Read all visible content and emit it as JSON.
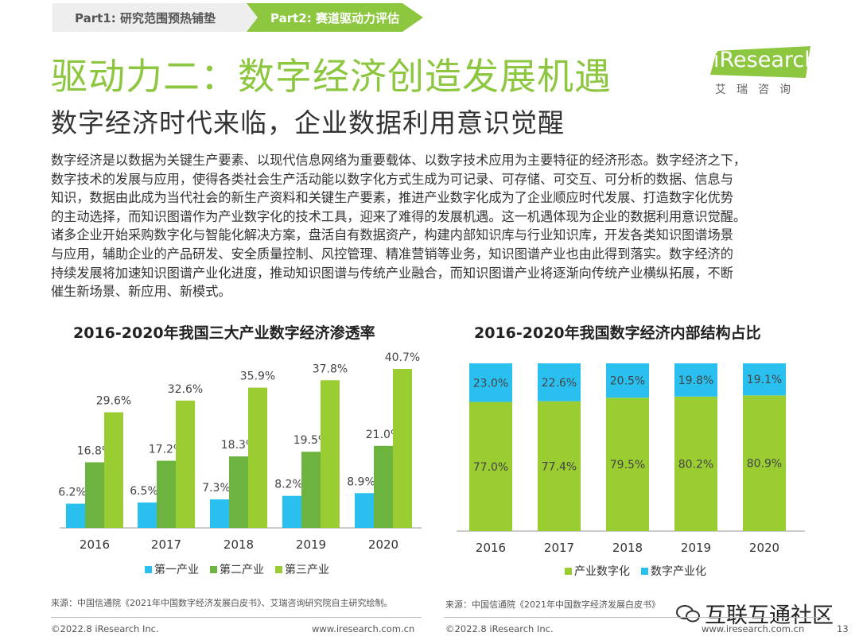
{
  "nav": {
    "tab1": "Part1: 研究范围预热铺垫",
    "tab2": "Part2: 赛道驱动力评估"
  },
  "title": "驱动力二：数字经济创造发展机遇",
  "subtitle": "数字经济时代来临，企业数据利用意识觉醒",
  "logo": {
    "text": "iResearch",
    "sub": "艾瑞咨询"
  },
  "body": [
    "数字经济是以数据为关键生产要素、以现代信息网络为重要载体、以数字技术应用为主要特征的经济形态。数字经济之下，",
    "数字技术的发展与应用，使得各类社会生产活动能以数字化方式生成为可记录、可存储、可交互、可分析的数据、信息与",
    "知识，数据由此成为当代社会的新生产资料和关键生产要素，推进产业数字化成为了企业顺应时代发展、打造数字化优势",
    "的主动选择，而知识图谱作为产业数字化的技术工具，迎来了难得的发展机遇。这一机遇体现为企业的数据利用意识觉醒。",
    "诸多企业开始采购数字化与智能化解决方案，盘活自有数据资产，构建内部知识库与行业知识库，开发各类知识图谱场景",
    "与应用，辅助企业的产品研发、安全质量控制、风控管理、精准营销等业务，知识图谱产业也由此得到落实。数字经济的",
    "持续发展将加速知识图谱产业化进度，推动知识图谱与传统产业融合，而知识图谱产业将逐渐向传统产业横纵拓展，不断",
    "催生新场景、新应用、新模式。"
  ],
  "chart_data": [
    {
      "type": "bar",
      "title": "2016-2020年我国三大产业数字经济渗透率",
      "categories": [
        "2016",
        "2017",
        "2018",
        "2019",
        "2020"
      ],
      "series": [
        {
          "name": "第一产业",
          "values": [
            6.2,
            6.5,
            7.3,
            8.2,
            8.9
          ],
          "labels": [
            "6.2%",
            "6.5%",
            "7.3%",
            "8.2%",
            "8.9%"
          ],
          "color": "#29c0f0"
        },
        {
          "name": "第二产业",
          "values": [
            16.8,
            17.2,
            18.3,
            19.5,
            21.0
          ],
          "labels": [
            "16.8%",
            "17.2%",
            "18.3%",
            "19.5%",
            "21.0%"
          ],
          "color": "#6cb33f"
        },
        {
          "name": "第三产业",
          "values": [
            29.6,
            32.6,
            35.9,
            37.8,
            40.7
          ],
          "labels": [
            "29.6%",
            "32.6%",
            "35.9%",
            "37.8%",
            "40.7%"
          ],
          "color": "#9acd32"
        }
      ],
      "ylim": [
        0,
        45
      ],
      "legend": "bottom",
      "source": "来源：中国信通院《2021年中国数字经济发展白皮书》、艾瑞咨询研究院自主研究绘制。"
    },
    {
      "type": "bar",
      "stacked": true,
      "title": "2016-2020年我国数字经济内部结构占比",
      "categories": [
        "2016",
        "2017",
        "2018",
        "2019",
        "2020"
      ],
      "series": [
        {
          "name": "产业数字化",
          "values": [
            77.0,
            77.4,
            79.5,
            80.2,
            80.9
          ],
          "labels": [
            "77.0%",
            "77.4%",
            "79.5%",
            "80.2%",
            "80.9%"
          ],
          "color": "#9acd32"
        },
        {
          "name": "数字产业化",
          "values": [
            23.0,
            22.6,
            20.5,
            19.8,
            19.1
          ],
          "labels": [
            "23.0%",
            "22.6%",
            "20.5%",
            "19.8%",
            "19.1%"
          ],
          "color": "#29c0f0"
        }
      ],
      "ylim": [
        0,
        100
      ],
      "legend": "bottom",
      "source": "来源：中国信通院《2021年中国数字经济发展白皮书》"
    }
  ],
  "footer": {
    "left_copyright": "©2022.8 iResearch Inc.",
    "left_url": "www.iresearch.com.cn",
    "right_copyright": "©2022.8 iResearch Inc.",
    "right_url": "www.iresearch.com.cn",
    "page": "13"
  },
  "watermark": "互联互通社区",
  "colors": {
    "accent": "#8dc63f",
    "blue": "#29c0f0"
  }
}
